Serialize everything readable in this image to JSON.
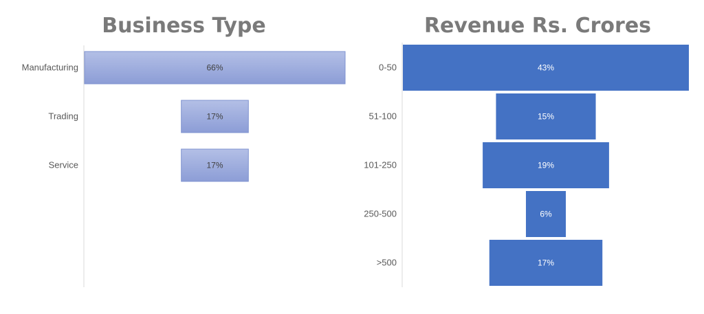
{
  "chart_data": [
    {
      "type": "bar",
      "title": "Business Type",
      "orientation": "horizontal-centered",
      "categories": [
        "Manufacturing",
        "Trading",
        "Service"
      ],
      "values": [
        66,
        17,
        17
      ],
      "labels": [
        "66%",
        "17%",
        "17%"
      ],
      "unit": "%",
      "color": "#9aa9dc",
      "label_color": "#404040",
      "grid": false
    },
    {
      "type": "bar",
      "title": "Revenue Rs. Crores",
      "orientation": "horizontal-centered",
      "categories": [
        "0-50",
        "51-100",
        "101-250",
        "250-500",
        ">500"
      ],
      "values": [
        43,
        15,
        19,
        6,
        17
      ],
      "labels": [
        "43%",
        "15%",
        "19%",
        "6%",
        "17%"
      ],
      "unit": "%",
      "color": "#4472c4",
      "label_color": "#ffffff",
      "grid": false
    }
  ]
}
